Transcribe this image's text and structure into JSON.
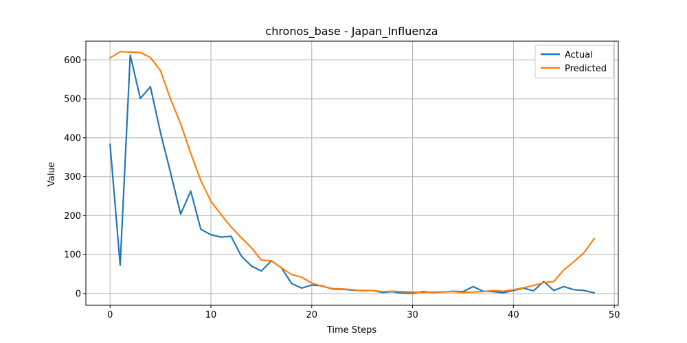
{
  "chart_data": {
    "type": "line",
    "title": "chronos_base - Japan_Influenza",
    "xlabel": "Time Steps",
    "ylabel": "Value",
    "xlim": [
      -2.4,
      50.4
    ],
    "ylim": [
      -30,
      648
    ],
    "xticks": [
      0,
      10,
      20,
      30,
      40,
      50
    ],
    "yticks": [
      0,
      100,
      200,
      300,
      400,
      500,
      600
    ],
    "grid": true,
    "legend_position": "top-right",
    "x": [
      0,
      1,
      2,
      3,
      4,
      5,
      6,
      7,
      8,
      9,
      10,
      11,
      12,
      13,
      14,
      15,
      16,
      17,
      18,
      19,
      20,
      21,
      22,
      23,
      24,
      25,
      26,
      27,
      28,
      29,
      30,
      31,
      32,
      33,
      34,
      35,
      36,
      37,
      38,
      39,
      40,
      41,
      42,
      43,
      44,
      45,
      46,
      47,
      48
    ],
    "series": [
      {
        "name": "Actual",
        "color": "#1f77b4",
        "values": [
          383,
          73,
          612,
          501,
          531,
          413,
          310,
          204,
          263,
          165,
          151,
          145,
          147,
          97,
          71,
          58,
          84,
          66,
          26,
          14,
          22,
          20,
          12,
          11,
          9,
          8,
          8,
          3,
          5,
          1,
          1,
          5,
          3,
          4,
          6,
          5,
          18,
          6,
          5,
          2,
          8,
          14,
          7,
          31,
          8,
          18,
          10,
          8,
          2
        ]
      },
      {
        "name": "Predicted",
        "color": "#ff7f0e",
        "values": [
          605,
          621,
          620,
          619,
          606,
          572,
          499,
          436,
          360,
          290,
          237,
          203,
          171,
          144,
          118,
          86,
          84,
          66,
          49,
          42,
          27,
          19,
          13,
          12,
          10,
          7,
          8,
          5,
          6,
          5,
          4,
          3,
          4,
          4,
          5,
          3,
          4,
          5,
          8,
          6,
          10,
          15,
          21,
          28,
          31,
          61,
          82,
          105,
          141
        ]
      }
    ]
  }
}
